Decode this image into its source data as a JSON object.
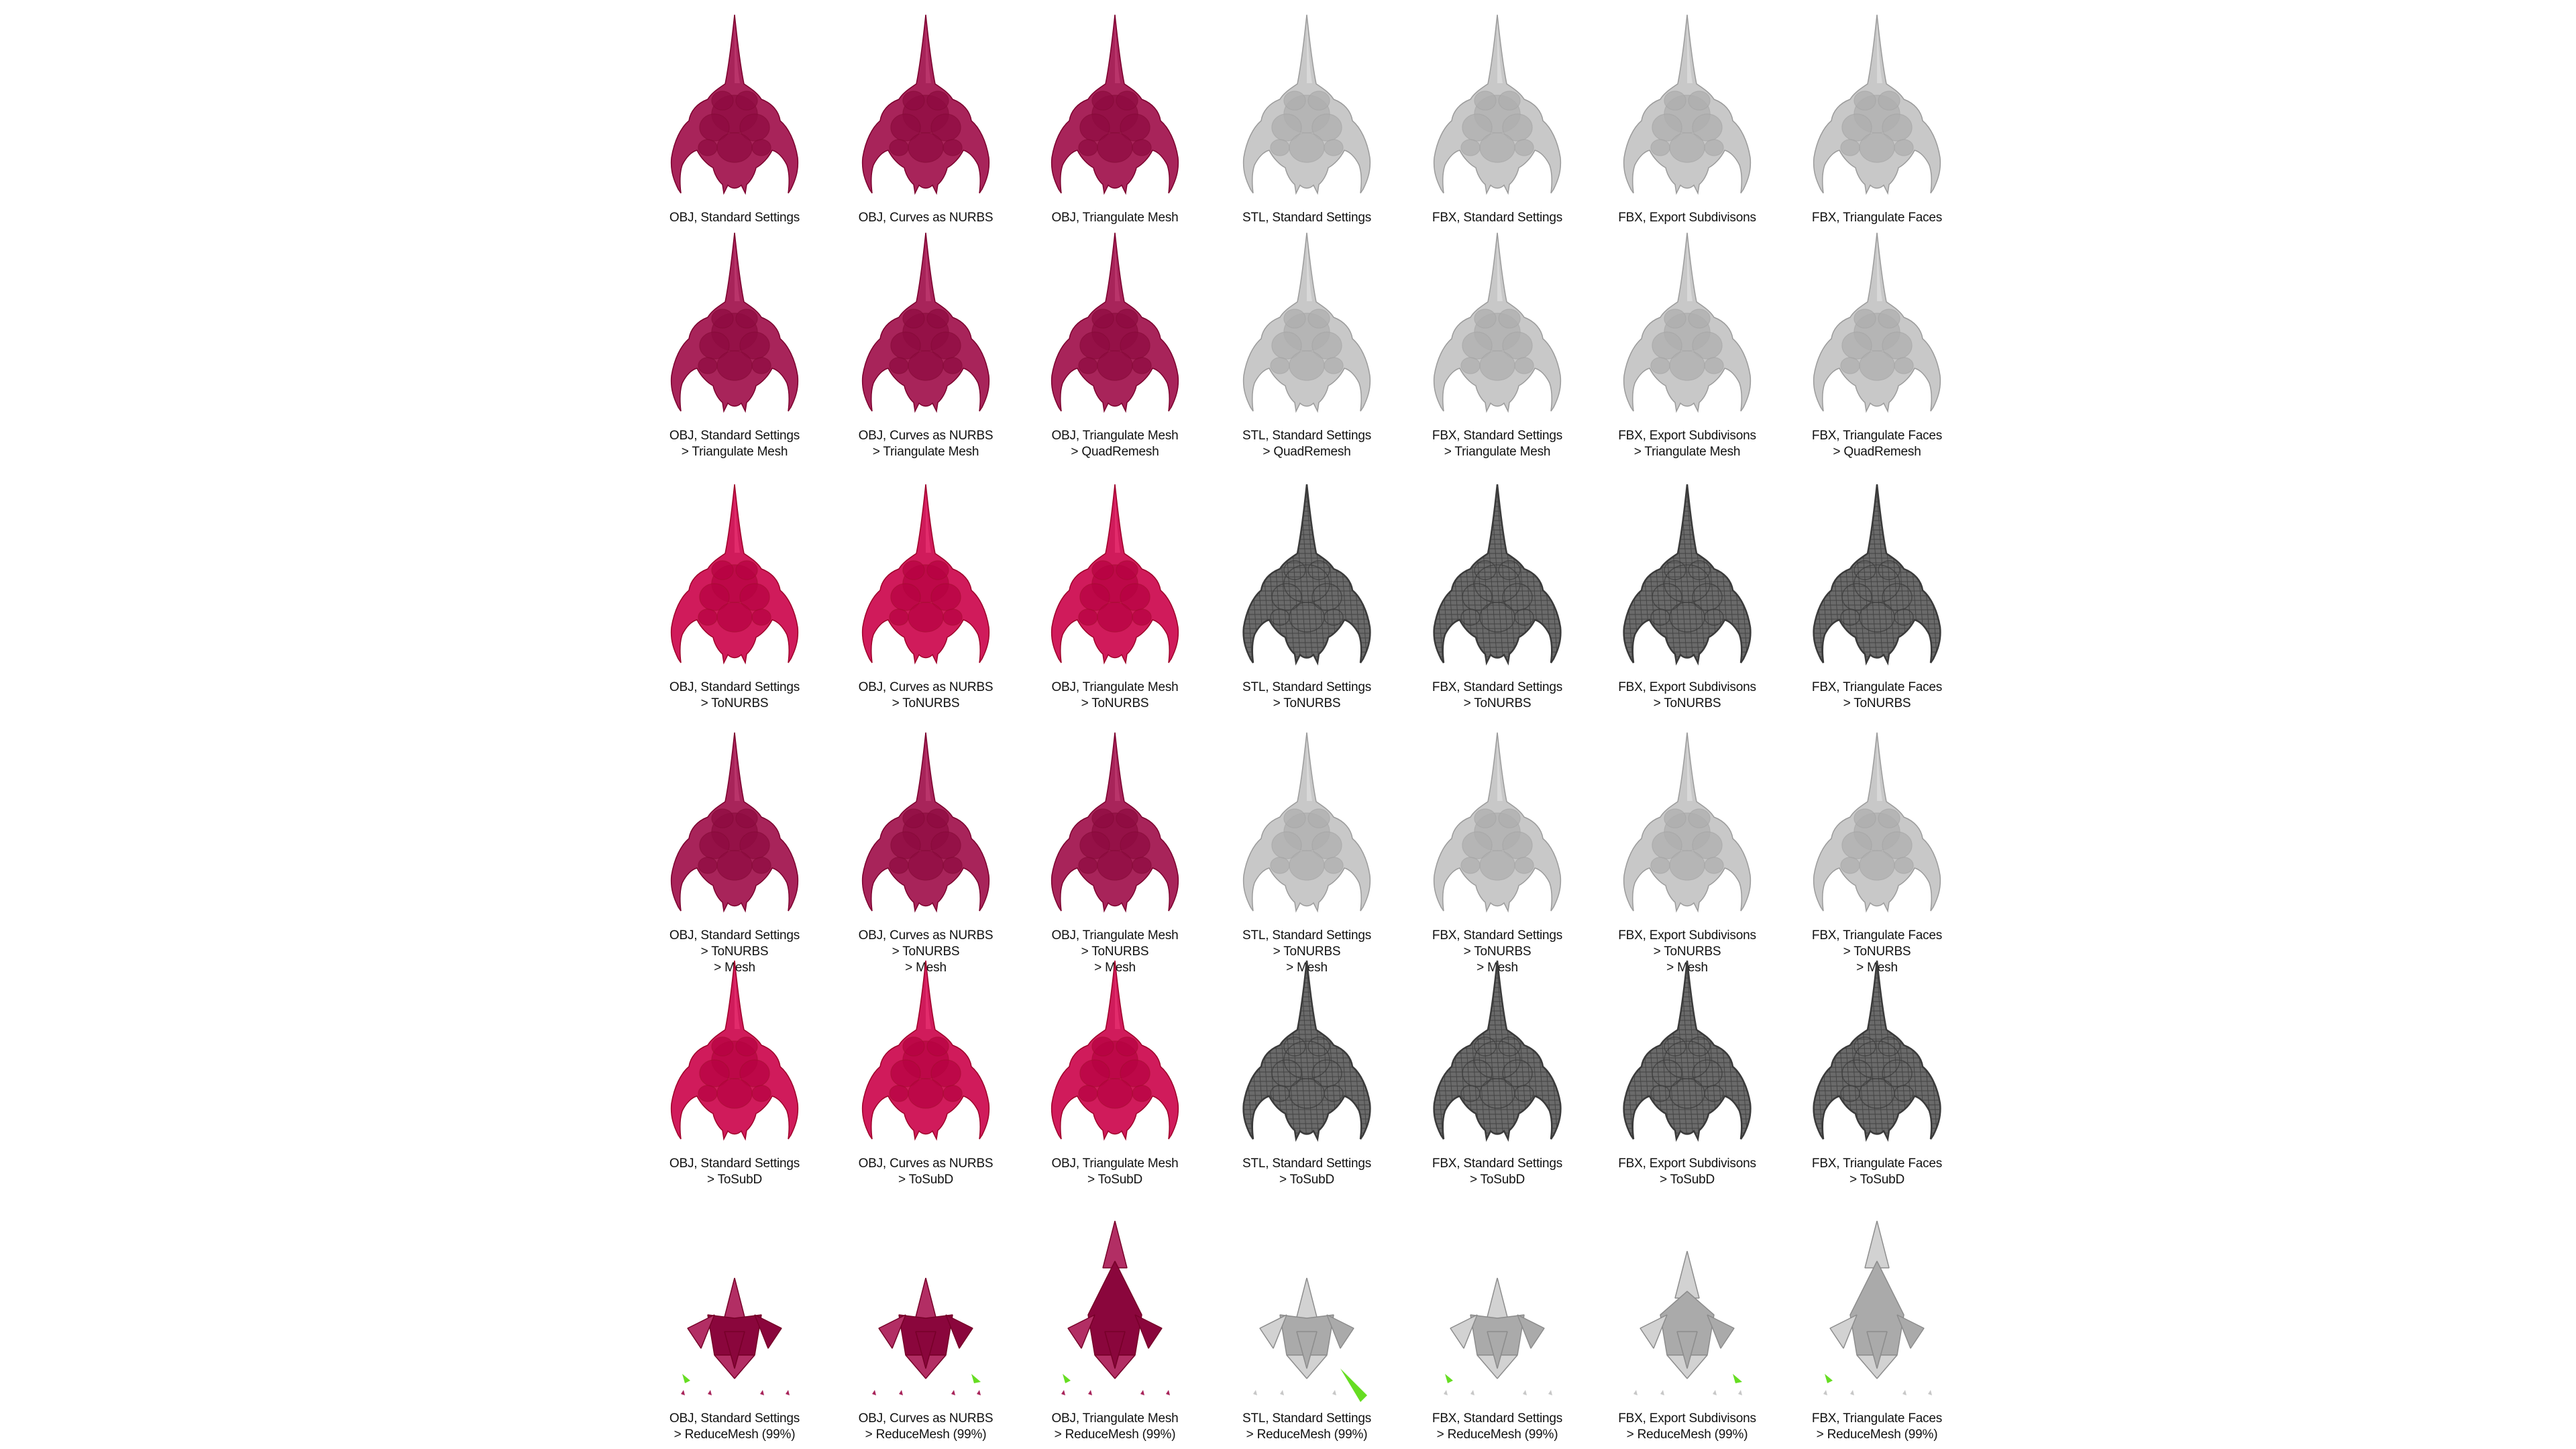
{
  "colors": {
    "obj_smooth": "#a8245a",
    "obj_bright": "#d01b5b",
    "grey": "#c8c8c8",
    "wire": "#3a3a3a",
    "accent_green": "#66dd22"
  },
  "rows": [
    {
      "style_obj": "smooth",
      "style_other": "grey",
      "cells": [
        {
          "lines": [
            "OBJ, Standard Settings"
          ]
        },
        {
          "lines": [
            "OBJ, Curves as NURBS"
          ]
        },
        {
          "lines": [
            "OBJ, Triangulate Mesh"
          ]
        },
        {
          "lines": [
            "STL, Standard Settings"
          ]
        },
        {
          "lines": [
            "FBX, Standard Settings"
          ]
        },
        {
          "lines": [
            "FBX, Export Subdivisons"
          ]
        },
        {
          "lines": [
            "FBX, Triangulate Faces"
          ]
        }
      ]
    },
    {
      "style_obj": "smooth",
      "style_other": "grey",
      "cells": [
        {
          "lines": [
            "OBJ, Standard Settings",
            "> Triangulate Mesh"
          ]
        },
        {
          "lines": [
            "OBJ, Curves as NURBS",
            "> Triangulate Mesh"
          ]
        },
        {
          "lines": [
            "OBJ, Triangulate Mesh",
            "> QuadRemesh"
          ]
        },
        {
          "lines": [
            "STL, Standard Settings",
            "> QuadRemesh"
          ]
        },
        {
          "lines": [
            "FBX, Standard Settings",
            "> Triangulate Mesh"
          ]
        },
        {
          "lines": [
            "FBX, Export Subdivisons",
            "> Triangulate Mesh"
          ]
        },
        {
          "lines": [
            "FBX, Triangulate Faces",
            "> QuadRemesh"
          ]
        }
      ]
    },
    {
      "style_obj": "bright",
      "style_other": "wire",
      "cells": [
        {
          "lines": [
            "OBJ, Standard Settings",
            "> ToNURBS"
          ]
        },
        {
          "lines": [
            "OBJ, Curves as NURBS",
            "> ToNURBS"
          ]
        },
        {
          "lines": [
            "OBJ, Triangulate Mesh",
            "> ToNURBS"
          ]
        },
        {
          "lines": [
            "STL, Standard Settings",
            "> ToNURBS"
          ]
        },
        {
          "lines": [
            "FBX, Standard Settings",
            "> ToNURBS"
          ]
        },
        {
          "lines": [
            "FBX, Export Subdivisons",
            "> ToNURBS"
          ]
        },
        {
          "lines": [
            "FBX, Triangulate Faces",
            "> ToNURBS"
          ]
        }
      ]
    },
    {
      "style_obj": "smooth",
      "style_other": "grey",
      "cells": [
        {
          "lines": [
            "OBJ, Standard Settings",
            "> ToNURBS",
            "> Mesh"
          ]
        },
        {
          "lines": [
            "OBJ, Curves as NURBS",
            "> ToNURBS",
            "> Mesh"
          ]
        },
        {
          "lines": [
            "OBJ, Triangulate Mesh",
            "> ToNURBS",
            "> Mesh"
          ]
        },
        {
          "lines": [
            "STL, Standard Settings",
            "> ToNURBS",
            "> Mesh"
          ]
        },
        {
          "lines": [
            "FBX, Standard Settings",
            "> ToNURBS",
            "> Mesh"
          ]
        },
        {
          "lines": [
            "FBX, Export Subdivisons",
            "> ToNURBS",
            "> Mesh"
          ]
        },
        {
          "lines": [
            "FBX, Triangulate Faces",
            "> ToNURBS",
            "> Mesh"
          ]
        }
      ]
    },
    {
      "style_obj": "bright",
      "style_other": "wire",
      "cells": [
        {
          "lines": [
            "OBJ, Standard Settings",
            "> ToSubD"
          ]
        },
        {
          "lines": [
            "OBJ, Curves as NURBS",
            "> ToSubD"
          ]
        },
        {
          "lines": [
            "OBJ, Triangulate Mesh",
            "> ToSubD"
          ]
        },
        {
          "lines": [
            "STL, Standard Settings",
            "> ToSubD"
          ]
        },
        {
          "lines": [
            "FBX, Standard Settings",
            "> ToSubD"
          ]
        },
        {
          "lines": [
            "FBX, Export Subdivisons",
            "> ToSubD"
          ]
        },
        {
          "lines": [
            "FBX, Triangulate Faces",
            "> ToSubD"
          ]
        }
      ]
    },
    {
      "style_obj": "reduced",
      "style_other": "reduced-grey",
      "cells": [
        {
          "lines": [
            "OBJ, Standard Settings",
            "> ReduceMesh (99%)"
          ]
        },
        {
          "lines": [
            "OBJ, Curves as NURBS",
            "> ReduceMesh (99%)"
          ]
        },
        {
          "lines": [
            "OBJ, Triangulate Mesh",
            "> ReduceMesh (99%)"
          ]
        },
        {
          "lines": [
            "STL, Standard Settings",
            "> ReduceMesh (99%)"
          ]
        },
        {
          "lines": [
            "FBX, Standard Settings",
            "> ReduceMesh (99%)"
          ]
        },
        {
          "lines": [
            "FBX, Export Subdivisons",
            "> ReduceMesh (99%)"
          ]
        },
        {
          "lines": [
            "FBX, Triangulate Faces",
            "> ReduceMesh (99%)"
          ]
        }
      ]
    }
  ]
}
